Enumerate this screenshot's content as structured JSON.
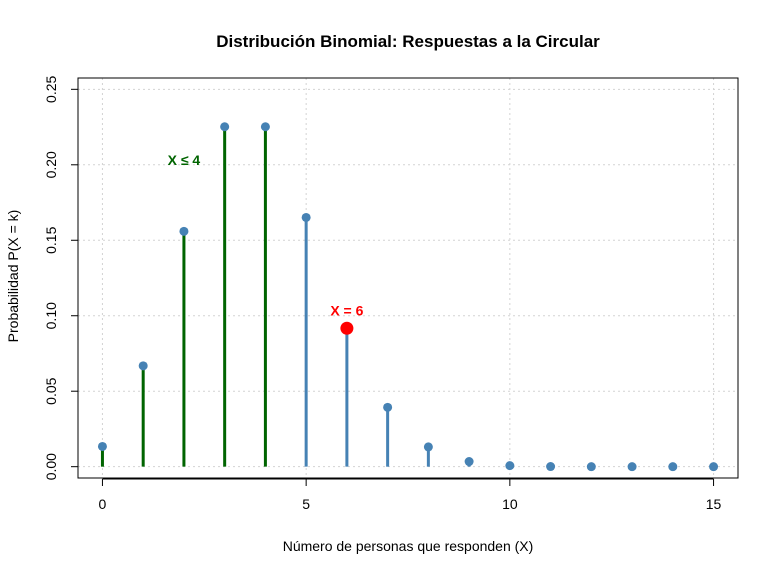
{
  "chart_data": {
    "type": "bar",
    "subtype": "lollipop",
    "title": "Distribución Binomial: Respuestas a la Circular",
    "xlabel": "Número de personas que responden (X)",
    "ylabel": "Probabilidad P(X = k)",
    "x_ticks": [
      "0",
      "5",
      "10",
      "15"
    ],
    "y_ticks": [
      "0.00",
      "0.05",
      "0.10",
      "0.15",
      "0.20",
      "0.25"
    ],
    "xlim": [
      -0.6,
      15.6
    ],
    "ylim": [
      -0.0075,
      0.2575
    ],
    "grid": true,
    "x": [
      0,
      1,
      2,
      3,
      4,
      5,
      6,
      7,
      8,
      9,
      10,
      11,
      12,
      13,
      14,
      15
    ],
    "values": [
      0.0134,
      0.0668,
      0.1559,
      0.2252,
      0.2252,
      0.1651,
      0.0917,
      0.0393,
      0.0131,
      0.0034,
      0.0007,
      0.0001,
      0.0,
      0.0,
      0.0,
      0.0
    ],
    "highlight_range": [
      0,
      4
    ],
    "highlight_point": 6,
    "annotations": [
      {
        "text": "X ≤ 4",
        "x": 2.0,
        "y": 0.2
      },
      {
        "text": "X = 6",
        "x": 6.0,
        "y": 0.1
      }
    ],
    "colors": {
      "highlight_range": "#006400",
      "default": "#4682b4",
      "highlight_point": "#ff0000",
      "grid": "#d3d3d3",
      "axis": "#000000"
    }
  }
}
